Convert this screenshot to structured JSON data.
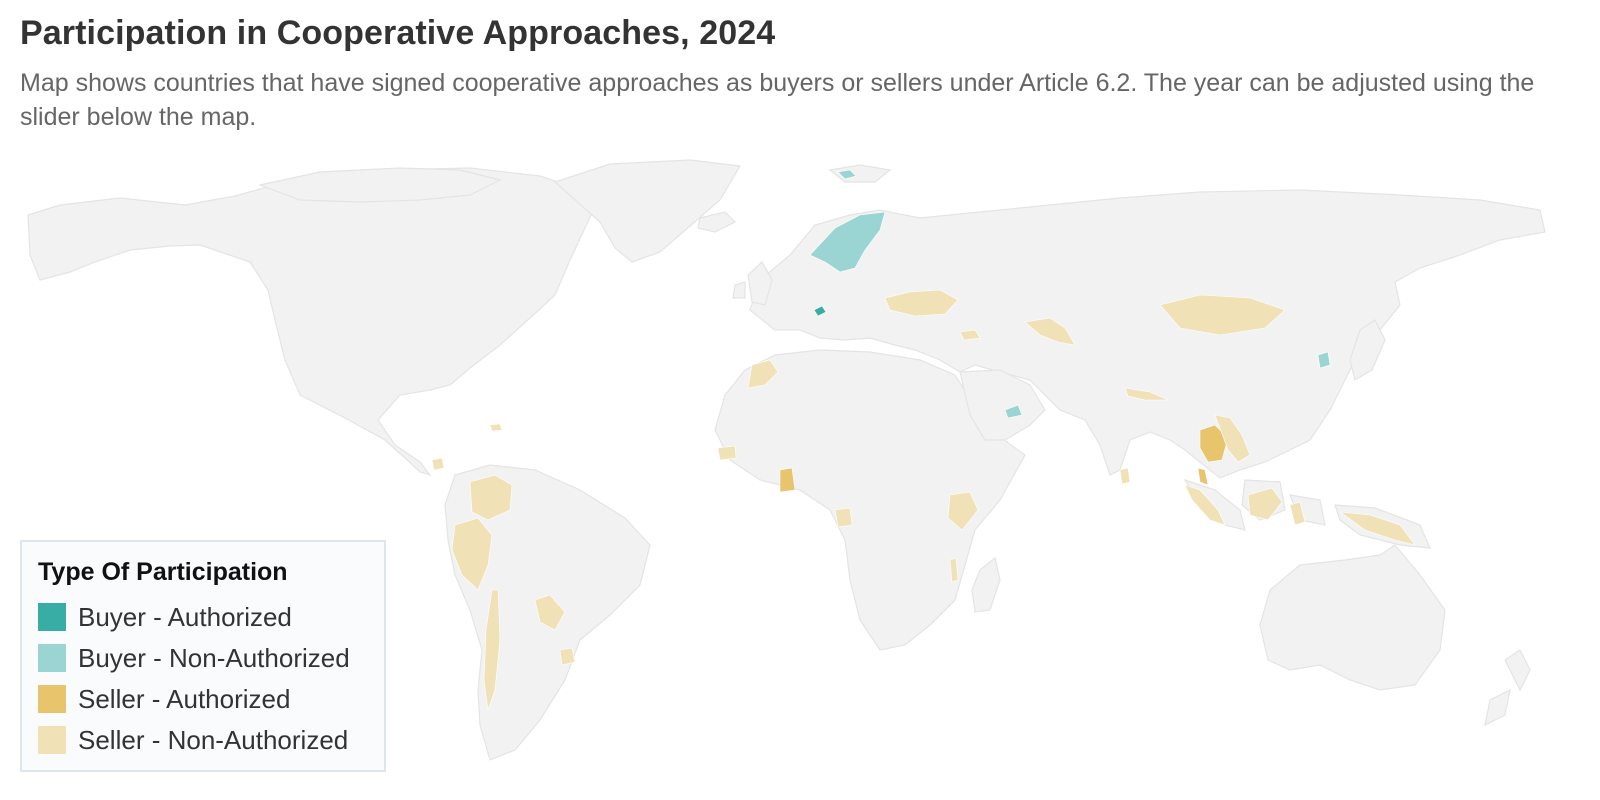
{
  "header": {
    "title": "Participation in Cooperative Approaches, 2024",
    "subtitle": "Map shows countries that have signed cooperative approaches as buyers or sellers under Article 6.2. The year can be adjusted using the slider below the map."
  },
  "legend": {
    "title": "Type Of Participation",
    "items": [
      {
        "label": "Buyer - Authorized",
        "color": "#38ada6"
      },
      {
        "label": "Buyer - Non-Authorized",
        "color": "#9bd5d3"
      },
      {
        "label": "Seller - Authorized",
        "color": "#e8c46c"
      },
      {
        "label": "Seller - Non-Authorized",
        "color": "#f1e1b6"
      }
    ]
  },
  "map_data": {
    "year": 2024,
    "land_color": "#f2f2f2",
    "participants": [
      {
        "country": "Norway",
        "type": "Buyer - Non-Authorized"
      },
      {
        "country": "Sweden",
        "type": "Buyer - Non-Authorized"
      },
      {
        "country": "Iceland",
        "type": "Buyer - Non-Authorized"
      },
      {
        "country": "Switzerland",
        "type": "Buyer - Authorized"
      },
      {
        "country": "Singapore",
        "type": "Buyer - Non-Authorized"
      },
      {
        "country": "South Korea",
        "type": "Buyer - Non-Authorized"
      },
      {
        "country": "United Arab Emirates",
        "type": "Buyer - Non-Authorized"
      },
      {
        "country": "Thailand",
        "type": "Seller - Authorized"
      },
      {
        "country": "Ghana",
        "type": "Seller - Authorized"
      },
      {
        "country": "Ukraine",
        "type": "Seller - Non-Authorized"
      },
      {
        "country": "Georgia",
        "type": "Seller - Non-Authorized"
      },
      {
        "country": "Uzbekistan",
        "type": "Seller - Non-Authorized"
      },
      {
        "country": "Mongolia",
        "type": "Seller - Non-Authorized"
      },
      {
        "country": "Morocco",
        "type": "Seller - Non-Authorized"
      },
      {
        "country": "Senegal",
        "type": "Seller - Non-Authorized"
      },
      {
        "country": "Nepal",
        "type": "Seller - Non-Authorized"
      },
      {
        "country": "Sri Lanka",
        "type": "Seller - Non-Authorized"
      },
      {
        "country": "Cambodia",
        "type": "Seller - Non-Authorized"
      },
      {
        "country": "Laos",
        "type": "Seller - Non-Authorized"
      },
      {
        "country": "Vietnam",
        "type": "Seller - Non-Authorized"
      },
      {
        "country": "Indonesia",
        "type": "Seller - Non-Authorized"
      },
      {
        "country": "Papua New Guinea",
        "type": "Seller - Non-Authorized"
      },
      {
        "country": "Philippines",
        "type": "Seller - Non-Authorized"
      },
      {
        "country": "Kenya",
        "type": "Seller - Non-Authorized"
      },
      {
        "country": "Malawi",
        "type": "Seller - Non-Authorized"
      },
      {
        "country": "Gabon",
        "type": "Seller - Non-Authorized"
      },
      {
        "country": "Colombia",
        "type": "Seller - Non-Authorized"
      },
      {
        "country": "Peru",
        "type": "Seller - Non-Authorized"
      },
      {
        "country": "Chile",
        "type": "Seller - Non-Authorized"
      },
      {
        "country": "Paraguay",
        "type": "Seller - Non-Authorized"
      },
      {
        "country": "Uruguay",
        "type": "Seller - Non-Authorized"
      },
      {
        "country": "Guatemala",
        "type": "Seller - Non-Authorized"
      },
      {
        "country": "Dominican Republic",
        "type": "Seller - Non-Authorized"
      }
    ]
  }
}
